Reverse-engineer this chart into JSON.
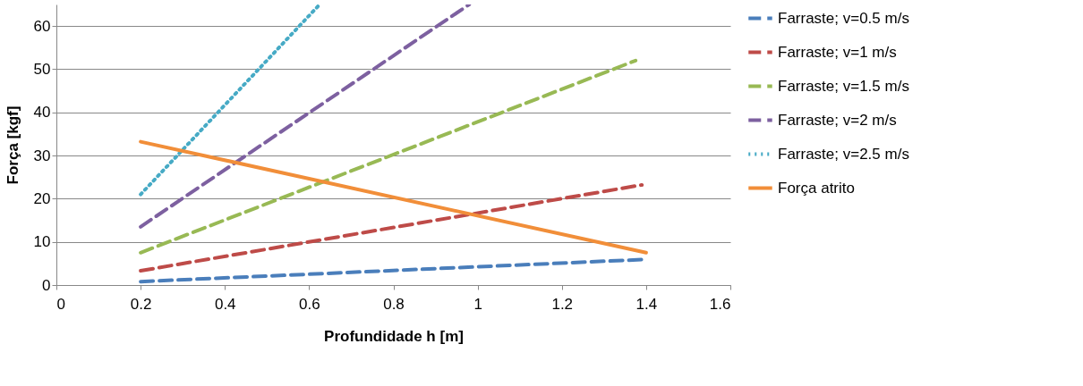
{
  "chart_data": {
    "type": "line",
    "xlabel": "Profundidade h [m]",
    "ylabel": "Força [kgf]",
    "xlim": [
      0,
      1.6
    ],
    "xticks": [
      0,
      0.2,
      0.4,
      0.6,
      0.8,
      1,
      1.2,
      1.4,
      1.6
    ],
    "ylim": [
      0,
      65
    ],
    "yticks": [
      0,
      10,
      20,
      30,
      40,
      50,
      60
    ],
    "grid": "y",
    "legend": "right",
    "marker": "none",
    "series": [
      {
        "name": "Farraste; v=0.5 m/s",
        "color": "#4a7ebb",
        "line_style": "dashed",
        "x": [
          0.2,
          1.39
        ],
        "values": [
          0.8,
          5.9
        ]
      },
      {
        "name": "Farraste; v=1 m/s",
        "color": "#be4b48",
        "line_style": "dashed",
        "x": [
          0.2,
          1.39
        ],
        "values": [
          3.3,
          23.2
        ]
      },
      {
        "name": "Farraste; v=1.5 m/s",
        "color": "#98b954",
        "line_style": "dashed",
        "x": [
          0.2,
          1.375
        ],
        "values": [
          7.5,
          52
        ]
      },
      {
        "name": "Farraste; v=2 m/s",
        "color": "#7d60a0",
        "line_style": "dashed",
        "x": [
          0.2,
          0.98
        ],
        "values": [
          13.5,
          65
        ]
      },
      {
        "name": "Farraste; v=2.5 m/s",
        "color": "#46aac5",
        "line_style": "dotted",
        "x": [
          0.2,
          0.625
        ],
        "values": [
          21,
          65
        ]
      },
      {
        "name": "Força atrito",
        "color": "#f18e39",
        "line_style": "solid",
        "x": [
          0.2,
          1.4
        ],
        "values": [
          33.2,
          7.5
        ]
      }
    ]
  }
}
